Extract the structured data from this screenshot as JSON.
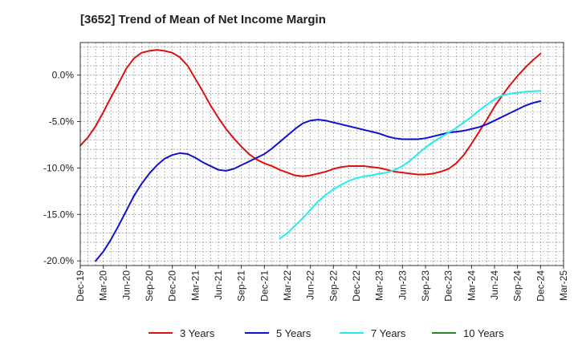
{
  "chart_data": {
    "type": "line",
    "title": "[3652]  Trend of Mean of Net Income Margin",
    "xlabel": "",
    "ylabel": "",
    "x": [
      "Dec-19",
      "Mar-20",
      "Jun-20",
      "Sep-20",
      "Dec-20",
      "Mar-21",
      "Jun-21",
      "Sep-21",
      "Dec-21",
      "Mar-22",
      "Jun-22",
      "Sep-22",
      "Dec-22",
      "Mar-23",
      "Jun-23",
      "Sep-23",
      "Dec-23",
      "Mar-24",
      "Jun-24",
      "Sep-24",
      "Dec-24",
      "Mar-25"
    ],
    "ylim": [
      -20.5,
      3.5
    ],
    "yticks": [
      0,
      -5,
      -10,
      -15,
      -20
    ],
    "ytick_labels": [
      "0.0%",
      "-5.0%",
      "-10.0%",
      "-15.0%",
      "-20.0%"
    ],
    "grid": true,
    "legend_position": "bottom",
    "series": [
      {
        "name": "3 Years",
        "color": "#dd1111",
        "points": [
          [
            "Dec-19",
            -7.6
          ],
          [
            "Jan-20",
            -6.7
          ],
          [
            "Feb-20",
            -5.5
          ],
          [
            "Mar-20",
            -4.0
          ],
          [
            "Apr-20",
            -2.4
          ],
          [
            "May-20",
            -0.9
          ],
          [
            "Jun-20",
            0.7
          ],
          [
            "Jul-20",
            1.8
          ],
          [
            "Aug-20",
            2.4
          ],
          [
            "Sep-20",
            2.6
          ],
          [
            "Oct-20",
            2.7
          ],
          [
            "Nov-20",
            2.6
          ],
          [
            "Dec-20",
            2.4
          ],
          [
            "Jan-21",
            1.9
          ],
          [
            "Feb-21",
            1.0
          ],
          [
            "Mar-21",
            -0.4
          ],
          [
            "Apr-21",
            -1.8
          ],
          [
            "May-21",
            -3.3
          ],
          [
            "Jun-21",
            -4.6
          ],
          [
            "Jul-21",
            -5.8
          ],
          [
            "Aug-21",
            -6.8
          ],
          [
            "Sep-21",
            -7.7
          ],
          [
            "Oct-21",
            -8.5
          ],
          [
            "Nov-21",
            -9.1
          ],
          [
            "Dec-21",
            -9.5
          ],
          [
            "Jan-22",
            -9.8
          ],
          [
            "Feb-22",
            -10.2
          ],
          [
            "Mar-22",
            -10.5
          ],
          [
            "Apr-22",
            -10.8
          ],
          [
            "May-22",
            -10.9
          ],
          [
            "Jun-22",
            -10.8
          ],
          [
            "Jul-22",
            -10.6
          ],
          [
            "Aug-22",
            -10.4
          ],
          [
            "Sep-22",
            -10.1
          ],
          [
            "Oct-22",
            -9.9
          ],
          [
            "Nov-22",
            -9.8
          ],
          [
            "Dec-22",
            -9.8
          ],
          [
            "Jan-23",
            -9.8
          ],
          [
            "Feb-23",
            -9.9
          ],
          [
            "Mar-23",
            -10.0
          ],
          [
            "Apr-23",
            -10.2
          ],
          [
            "May-23",
            -10.4
          ],
          [
            "Jun-23",
            -10.5
          ],
          [
            "Jul-23",
            -10.6
          ],
          [
            "Aug-23",
            -10.7
          ],
          [
            "Sep-23",
            -10.7
          ],
          [
            "Oct-23",
            -10.6
          ],
          [
            "Nov-23",
            -10.4
          ],
          [
            "Dec-23",
            -10.1
          ],
          [
            "Jan-24",
            -9.5
          ],
          [
            "Feb-24",
            -8.6
          ],
          [
            "Mar-24",
            -7.4
          ],
          [
            "Apr-24",
            -6.1
          ],
          [
            "May-24",
            -4.8
          ],
          [
            "Jun-24",
            -3.4
          ],
          [
            "Jul-24",
            -2.2
          ],
          [
            "Aug-24",
            -1.1
          ],
          [
            "Sep-24",
            -0.1
          ],
          [
            "Oct-24",
            0.8
          ],
          [
            "Nov-24",
            1.6
          ],
          [
            "Dec-24",
            2.3
          ]
        ]
      },
      {
        "name": "5 Years",
        "color": "#1111cc",
        "points": [
          [
            "Feb-20",
            -20.0
          ],
          [
            "Mar-20",
            -19.0
          ],
          [
            "Apr-20",
            -17.7
          ],
          [
            "May-20",
            -16.2
          ],
          [
            "Jun-20",
            -14.6
          ],
          [
            "Jul-20",
            -13.0
          ],
          [
            "Aug-20",
            -11.7
          ],
          [
            "Sep-20",
            -10.6
          ],
          [
            "Oct-20",
            -9.7
          ],
          [
            "Nov-20",
            -9.0
          ],
          [
            "Dec-20",
            -8.6
          ],
          [
            "Jan-21",
            -8.4
          ],
          [
            "Feb-21",
            -8.5
          ],
          [
            "Mar-21",
            -8.9
          ],
          [
            "Apr-21",
            -9.4
          ],
          [
            "May-21",
            -9.8
          ],
          [
            "Jun-21",
            -10.2
          ],
          [
            "Jul-21",
            -10.3
          ],
          [
            "Aug-21",
            -10.1
          ],
          [
            "Sep-21",
            -9.7
          ],
          [
            "Oct-21",
            -9.3
          ],
          [
            "Nov-21",
            -8.9
          ],
          [
            "Dec-21",
            -8.5
          ],
          [
            "Jan-22",
            -7.9
          ],
          [
            "Feb-22",
            -7.2
          ],
          [
            "Mar-22",
            -6.5
          ],
          [
            "Apr-22",
            -5.8
          ],
          [
            "May-22",
            -5.2
          ],
          [
            "Jun-22",
            -4.9
          ],
          [
            "Jul-22",
            -4.8
          ],
          [
            "Aug-22",
            -4.9
          ],
          [
            "Sep-22",
            -5.1
          ],
          [
            "Oct-22",
            -5.3
          ],
          [
            "Nov-22",
            -5.5
          ],
          [
            "Dec-22",
            -5.7
          ],
          [
            "Jan-23",
            -5.9
          ],
          [
            "Feb-23",
            -6.1
          ],
          [
            "Mar-23",
            -6.3
          ],
          [
            "Apr-23",
            -6.6
          ],
          [
            "May-23",
            -6.8
          ],
          [
            "Jun-23",
            -6.9
          ],
          [
            "Jul-23",
            -6.9
          ],
          [
            "Aug-23",
            -6.9
          ],
          [
            "Sep-23",
            -6.8
          ],
          [
            "Oct-23",
            -6.6
          ],
          [
            "Nov-23",
            -6.4
          ],
          [
            "Dec-23",
            -6.2
          ],
          [
            "Jan-24",
            -6.1
          ],
          [
            "Feb-24",
            -6.0
          ],
          [
            "Mar-24",
            -5.8
          ],
          [
            "Apr-24",
            -5.6
          ],
          [
            "May-24",
            -5.3
          ],
          [
            "Jun-24",
            -4.9
          ],
          [
            "Jul-24",
            -4.5
          ],
          [
            "Aug-24",
            -4.1
          ],
          [
            "Sep-24",
            -3.7
          ],
          [
            "Oct-24",
            -3.3
          ],
          [
            "Nov-24",
            -3.0
          ],
          [
            "Dec-24",
            -2.8
          ]
        ]
      },
      {
        "name": "7 Years",
        "color": "#22eeee",
        "points": [
          [
            "Feb-22",
            -17.6
          ],
          [
            "Mar-22",
            -17.0
          ],
          [
            "Apr-22",
            -16.2
          ],
          [
            "May-22",
            -15.4
          ],
          [
            "Jun-22",
            -14.5
          ],
          [
            "Jul-22",
            -13.6
          ],
          [
            "Aug-22",
            -12.9
          ],
          [
            "Sep-22",
            -12.3
          ],
          [
            "Oct-22",
            -11.8
          ],
          [
            "Nov-22",
            -11.4
          ],
          [
            "Dec-22",
            -11.1
          ],
          [
            "Jan-23",
            -10.9
          ],
          [
            "Feb-23",
            -10.8
          ],
          [
            "Mar-23",
            -10.6
          ],
          [
            "Apr-23",
            -10.5
          ],
          [
            "May-23",
            -10.2
          ],
          [
            "Jun-23",
            -9.8
          ],
          [
            "Jul-23",
            -9.2
          ],
          [
            "Aug-23",
            -8.5
          ],
          [
            "Sep-23",
            -7.8
          ],
          [
            "Oct-23",
            -7.2
          ],
          [
            "Nov-23",
            -6.7
          ],
          [
            "Dec-23",
            -6.2
          ],
          [
            "Jan-24",
            -5.7
          ],
          [
            "Feb-24",
            -5.1
          ],
          [
            "Mar-24",
            -4.5
          ],
          [
            "Apr-24",
            -3.8
          ],
          [
            "May-24",
            -3.2
          ],
          [
            "Jun-24",
            -2.6
          ],
          [
            "Jul-24",
            -2.2
          ],
          [
            "Aug-24",
            -2.0
          ],
          [
            "Sep-24",
            -1.9
          ],
          [
            "Oct-24",
            -1.8
          ],
          [
            "Nov-24",
            -1.75
          ],
          [
            "Dec-24",
            -1.7
          ]
        ]
      },
      {
        "name": "10 Years",
        "color": "#228822",
        "points": []
      }
    ]
  }
}
